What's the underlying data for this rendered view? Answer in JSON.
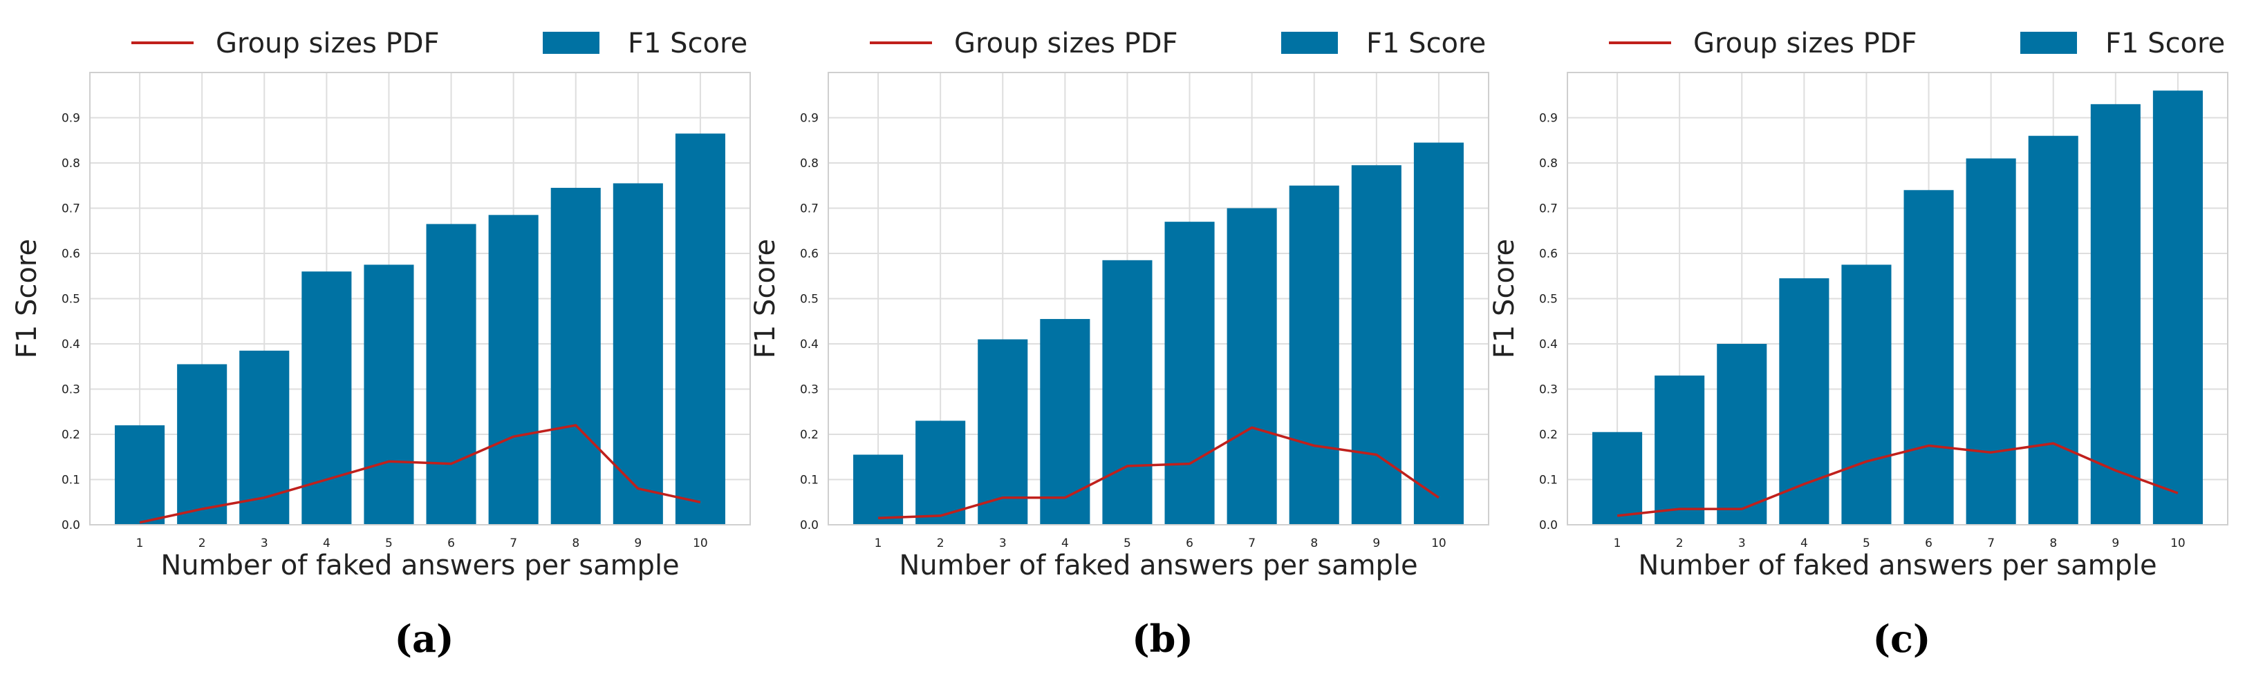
{
  "colors": {
    "bar": "#0072a3",
    "line": "#c0201c",
    "plot_bg": "#ffffff",
    "grid": "#dedede",
    "frame": "#cfcfcf",
    "text": "#222222"
  },
  "legend": {
    "line_label": "Group sizes PDF",
    "bar_label": "F1 Score"
  },
  "chart_data": [
    {
      "type": "bar",
      "caption": "(a)",
      "title": "",
      "xlabel": "Number of faked answers per sample",
      "ylabel": "F1 Score",
      "ylim": [
        0,
        1.0
      ],
      "y_ticks": [
        "0.0",
        "0.1",
        "0.2",
        "0.3",
        "0.4",
        "0.5",
        "0.6",
        "0.7",
        "0.8",
        "0.9"
      ],
      "categories": [
        "1",
        "2",
        "3",
        "4",
        "5",
        "6",
        "7",
        "8",
        "9",
        "10"
      ],
      "grid": true,
      "legend_position": "top-center",
      "series": [
        {
          "name": "F1 Score",
          "type": "bar",
          "values": [
            0.22,
            0.355,
            0.385,
            0.56,
            0.575,
            0.665,
            0.685,
            0.745,
            0.755,
            0.865
          ]
        },
        {
          "name": "Group sizes PDF",
          "type": "line",
          "values": [
            0.005,
            0.035,
            0.06,
            0.1,
            0.14,
            0.135,
            0.195,
            0.22,
            0.08,
            0.05
          ]
        }
      ]
    },
    {
      "type": "bar",
      "caption": "(b)",
      "title": "",
      "xlabel": "Number of faked answers per sample",
      "ylabel": "F1 Score",
      "ylim": [
        0,
        1.0
      ],
      "y_ticks": [
        "0.0",
        "0.1",
        "0.2",
        "0.3",
        "0.4",
        "0.5",
        "0.6",
        "0.7",
        "0.8",
        "0.9"
      ],
      "categories": [
        "1",
        "2",
        "3",
        "4",
        "5",
        "6",
        "7",
        "8",
        "9",
        "10"
      ],
      "grid": true,
      "legend_position": "top-center",
      "series": [
        {
          "name": "F1 Score",
          "type": "bar",
          "values": [
            0.155,
            0.23,
            0.41,
            0.455,
            0.585,
            0.67,
            0.7,
            0.75,
            0.795,
            0.845
          ]
        },
        {
          "name": "Group sizes PDF",
          "type": "line",
          "values": [
            0.015,
            0.02,
            0.06,
            0.06,
            0.13,
            0.135,
            0.215,
            0.175,
            0.155,
            0.06
          ]
        }
      ]
    },
    {
      "type": "bar",
      "caption": "(c)",
      "title": "",
      "xlabel": "Number of faked answers per sample",
      "ylabel": "F1 Score",
      "ylim": [
        0,
        1.0
      ],
      "y_ticks": [
        "0.0",
        "0.1",
        "0.2",
        "0.3",
        "0.4",
        "0.5",
        "0.6",
        "0.7",
        "0.8",
        "0.9"
      ],
      "categories": [
        "1",
        "2",
        "3",
        "4",
        "5",
        "6",
        "7",
        "8",
        "9",
        "10"
      ],
      "grid": true,
      "legend_position": "top-center",
      "series": [
        {
          "name": "F1 Score",
          "type": "bar",
          "values": [
            0.205,
            0.33,
            0.4,
            0.545,
            0.575,
            0.74,
            0.81,
            0.86,
            0.93,
            0.96
          ]
        },
        {
          "name": "Group sizes PDF",
          "type": "line",
          "values": [
            0.02,
            0.035,
            0.035,
            0.09,
            0.14,
            0.175,
            0.16,
            0.18,
            0.12,
            0.07
          ]
        }
      ]
    }
  ]
}
